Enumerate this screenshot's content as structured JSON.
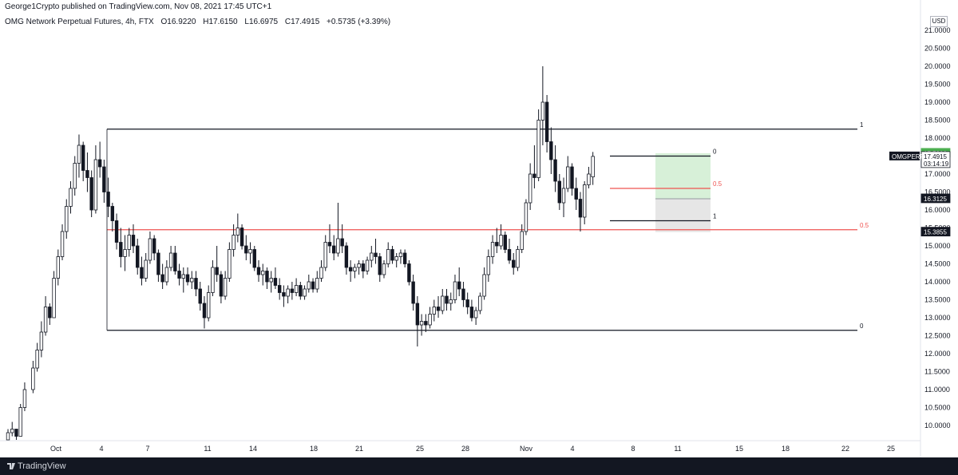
{
  "header": {
    "published": "George1Crypto published on TradingView.com, Nov 08, 2021 17:45 UTC+1"
  },
  "legend": {
    "symbol": "OMG Network Perpetual Futures, 4h, FTX",
    "open": "O16.9220",
    "high": "H17.6150",
    "low": "L16.6975",
    "close": "C17.4915",
    "change": "+0.5735 (+3.39%)"
  },
  "footer": {
    "brand": "TradingView"
  },
  "colors": {
    "up": "#131722",
    "down": "#131722",
    "fib_red": "#ef5350",
    "profit_zone": "#d7f0d8",
    "stop_zone": "#e6e6e6",
    "green_tag": "#4caf50"
  },
  "chart_data": {
    "type": "candlestick",
    "currency_label": "USD",
    "y_ticks": [
      "21.0000",
      "20.5000",
      "20.0000",
      "19.5000",
      "19.0000",
      "18.5000",
      "18.0000",
      "17.5000",
      "17.0000",
      "16.5000",
      "16.0000",
      "15.5000",
      "15.0000",
      "14.5000",
      "14.0000",
      "13.5000",
      "13.0000",
      "12.5000",
      "12.0000",
      "11.5000",
      "11.0000",
      "10.5000",
      "10.0000"
    ],
    "x_ticks": [
      "Oct",
      "4",
      "7",
      "11",
      "14",
      "18",
      "21",
      "25",
      "28",
      "Nov",
      "4",
      "8",
      "11",
      "15",
      "18",
      "22",
      "25"
    ],
    "price_tags": [
      {
        "label": "17.5800",
        "value": 17.58,
        "style": "green"
      },
      {
        "label": "17.4915",
        "value": 17.4915,
        "style": "current",
        "timer": "03:14:19"
      },
      {
        "label": "16.3125",
        "value": 16.3125,
        "style": "dark"
      },
      {
        "label": "15.3855",
        "value": 15.3855,
        "style": "dark"
      }
    ],
    "symbol_tag": "OMGPERP",
    "fib_big": [
      {
        "label": "1",
        "value": 18.25
      },
      {
        "label": "0.5",
        "value": 15.45
      },
      {
        "label": "0",
        "value": 12.65
      }
    ],
    "fib_small": [
      {
        "label": "0",
        "value": 17.5
      },
      {
        "label": "0.5",
        "value": 16.6
      },
      {
        "label": "1",
        "value": 15.7
      }
    ],
    "position": {
      "entry": 16.3125,
      "target": 17.58,
      "stop": 15.3855
    },
    "candles": [
      [
        1,
        9.6,
        9.9,
        9.6,
        9.8
      ],
      [
        1,
        9.8,
        10.1,
        9.7,
        9.9
      ],
      [
        1,
        9.9,
        9.9,
        9.6,
        9.7
      ],
      [
        2,
        9.7,
        10.6,
        9.7,
        10.5
      ],
      [
        2,
        10.5,
        11.2,
        10.4,
        11.0
      ],
      [
        3,
        11.0,
        11.8,
        10.9,
        11.6
      ],
      [
        3,
        11.6,
        12.3,
        11.5,
        12.1
      ],
      [
        3,
        12.1,
        12.9,
        11.9,
        12.6
      ],
      [
        4,
        12.6,
        13.6,
        12.5,
        13.3
      ],
      [
        4,
        13.3,
        13.4,
        12.8,
        13.0
      ],
      [
        4,
        13.0,
        14.3,
        13.0,
        14.1
      ],
      [
        5,
        14.1,
        14.9,
        13.9,
        14.7
      ],
      [
        5,
        14.7,
        15.6,
        14.6,
        15.4
      ],
      [
        5,
        15.4,
        16.3,
        15.2,
        16.1
      ],
      [
        6,
        16.1,
        16.8,
        15.9,
        16.6
      ],
      [
        6,
        16.6,
        17.5,
        16.4,
        17.3
      ],
      [
        6,
        17.3,
        18.1,
        16.9,
        17.8
      ],
      [
        7,
        17.8,
        17.9,
        16.8,
        17.1
      ],
      [
        7,
        17.1,
        17.6,
        16.5,
        16.9
      ],
      [
        7,
        16.9,
        17.1,
        15.8,
        16.0
      ],
      [
        8,
        16.0,
        17.8,
        15.9,
        17.4
      ],
      [
        8,
        17.4,
        17.9,
        16.9,
        17.2
      ],
      [
        8,
        17.2,
        17.4,
        16.2,
        16.5
      ],
      [
        9,
        16.5,
        16.9,
        15.8,
        16.1
      ],
      [
        9,
        16.1,
        16.2,
        15.4,
        15.7
      ],
      [
        9,
        15.7,
        15.9,
        14.9,
        15.1
      ],
      [
        10,
        15.1,
        15.5,
        14.4,
        14.7
      ],
      [
        10,
        14.7,
        15.3,
        14.3,
        14.9
      ],
      [
        10,
        14.9,
        15.5,
        14.7,
        15.3
      ],
      [
        11,
        15.3,
        15.6,
        14.8,
        15.0
      ],
      [
        11,
        15.0,
        15.2,
        14.2,
        14.4
      ],
      [
        11,
        14.4,
        14.7,
        13.9,
        14.1
      ],
      [
        12,
        14.1,
        14.8,
        14.0,
        14.6
      ],
      [
        12,
        14.6,
        15.4,
        14.5,
        15.2
      ],
      [
        12,
        15.2,
        15.3,
        14.6,
        14.8
      ],
      [
        13,
        14.8,
        14.9,
        14.0,
        14.2
      ],
      [
        13,
        14.2,
        14.5,
        13.8,
        14.0
      ],
      [
        13,
        14.0,
        14.6,
        13.9,
        14.4
      ],
      [
        14,
        14.4,
        15.0,
        14.3,
        14.8
      ],
      [
        14,
        14.8,
        15.0,
        14.2,
        14.3
      ],
      [
        14,
        14.3,
        14.5,
        13.9,
        14.1
      ],
      [
        15,
        14.1,
        14.4,
        13.7,
        14.2
      ],
      [
        15,
        14.2,
        14.4,
        13.9,
        14.0
      ],
      [
        15,
        14.0,
        14.3,
        13.8,
        14.1
      ],
      [
        16,
        14.1,
        14.3,
        13.6,
        13.8
      ],
      [
        16,
        13.8,
        14.0,
        13.2,
        13.4
      ],
      [
        16,
        13.4,
        13.6,
        12.7,
        13.0
      ],
      [
        17,
        13.0,
        13.9,
        12.9,
        13.7
      ],
      [
        17,
        13.7,
        14.6,
        13.6,
        14.4
      ],
      [
        17,
        14.4,
        15.0,
        14.0,
        14.2
      ],
      [
        18,
        14.2,
        14.3,
        13.4,
        13.6
      ],
      [
        18,
        13.6,
        14.3,
        13.5,
        14.1
      ],
      [
        18,
        14.1,
        15.1,
        14.0,
        14.9
      ],
      [
        19,
        14.9,
        15.6,
        14.7,
        15.3
      ],
      [
        19,
        15.3,
        15.9,
        15.1,
        15.5
      ],
      [
        19,
        15.5,
        15.6,
        14.9,
        15.0
      ],
      [
        20,
        15.0,
        15.3,
        14.6,
        14.8
      ],
      [
        20,
        14.8,
        15.1,
        14.5,
        14.9
      ],
      [
        20,
        14.9,
        15.0,
        14.3,
        14.4
      ],
      [
        21,
        14.4,
        14.6,
        14.0,
        14.2
      ],
      [
        21,
        14.2,
        14.5,
        13.9,
        14.3
      ],
      [
        21,
        14.3,
        14.4,
        13.8,
        14.0
      ],
      [
        22,
        14.0,
        14.3,
        13.7,
        14.1
      ],
      [
        22,
        14.1,
        14.4,
        13.8,
        13.9
      ],
      [
        22,
        13.9,
        14.1,
        13.5,
        13.7
      ],
      [
        23,
        13.7,
        13.9,
        13.3,
        13.6
      ],
      [
        23,
        13.6,
        13.9,
        13.4,
        13.8
      ],
      [
        23,
        13.8,
        14.0,
        13.5,
        13.7
      ],
      [
        24,
        13.7,
        14.1,
        13.6,
        13.9
      ],
      [
        24,
        13.9,
        14.0,
        13.5,
        13.6
      ],
      [
        24,
        13.6,
        13.9,
        13.5,
        13.8
      ],
      [
        25,
        13.8,
        14.2,
        13.7,
        14.0
      ],
      [
        25,
        14.0,
        14.1,
        13.7,
        13.8
      ],
      [
        25,
        13.8,
        14.3,
        13.7,
        14.1
      ],
      [
        26,
        14.1,
        14.6,
        14.0,
        14.4
      ],
      [
        26,
        14.4,
        15.3,
        14.3,
        15.1
      ],
      [
        26,
        15.1,
        15.6,
        14.8,
        15.0
      ],
      [
        27,
        15.0,
        15.3,
        14.6,
        14.8
      ],
      [
        27,
        14.8,
        16.2,
        14.7,
        15.2
      ],
      [
        27,
        15.2,
        15.6,
        14.8,
        15.0
      ],
      [
        28,
        15.0,
        15.1,
        14.2,
        14.4
      ],
      [
        28,
        14.4,
        14.6,
        14.0,
        14.3
      ],
      [
        28,
        14.3,
        14.5,
        14.1,
        14.4
      ],
      [
        29,
        14.4,
        14.6,
        14.2,
        14.5
      ],
      [
        29,
        14.5,
        14.6,
        14.1,
        14.3
      ],
      [
        29,
        14.3,
        14.7,
        14.2,
        14.6
      ],
      [
        30,
        14.6,
        15.0,
        14.4,
        14.8
      ],
      [
        30,
        14.8,
        15.2,
        14.5,
        14.7
      ],
      [
        30,
        14.7,
        14.8,
        14.0,
        14.2
      ],
      [
        31,
        14.2,
        14.6,
        14.1,
        14.5
      ],
      [
        31,
        14.5,
        15.1,
        14.4,
        14.9
      ],
      [
        31,
        14.9,
        15.0,
        14.5,
        14.6
      ],
      [
        32,
        14.6,
        14.8,
        14.4,
        14.7
      ],
      [
        32,
        14.7,
        14.9,
        14.5,
        14.8
      ],
      [
        32,
        14.8,
        14.9,
        14.4,
        14.5
      ],
      [
        33,
        14.5,
        14.6,
        13.9,
        14.0
      ],
      [
        33,
        14.0,
        14.2,
        13.2,
        13.4
      ],
      [
        33,
        13.4,
        13.6,
        12.2,
        12.8
      ],
      [
        34,
        12.8,
        13.1,
        12.5,
        12.9
      ],
      [
        34,
        12.9,
        13.1,
        12.6,
        12.8
      ],
      [
        34,
        12.8,
        13.3,
        12.7,
        13.1
      ],
      [
        35,
        13.1,
        13.5,
        12.9,
        13.3
      ],
      [
        35,
        13.3,
        13.6,
        13.0,
        13.2
      ],
      [
        35,
        13.2,
        13.8,
        13.1,
        13.6
      ],
      [
        36,
        13.6,
        13.8,
        13.2,
        13.4
      ],
      [
        36,
        13.4,
        13.7,
        13.2,
        13.5
      ],
      [
        36,
        13.5,
        14.2,
        13.4,
        14.0
      ],
      [
        37,
        14.0,
        14.4,
        13.6,
        13.8
      ],
      [
        37,
        13.8,
        14.0,
        13.3,
        13.5
      ],
      [
        37,
        13.5,
        13.7,
        13.1,
        13.3
      ],
      [
        38,
        13.3,
        13.5,
        12.9,
        13.0
      ],
      [
        38,
        13.0,
        13.3,
        12.8,
        13.2
      ],
      [
        38,
        13.2,
        13.7,
        13.1,
        13.6
      ],
      [
        39,
        13.6,
        14.4,
        13.5,
        14.2
      ],
      [
        39,
        14.2,
        14.9,
        14.0,
        14.7
      ],
      [
        39,
        14.7,
        15.3,
        14.5,
        15.1
      ],
      [
        40,
        15.1,
        15.5,
        14.8,
        15.0
      ],
      [
        40,
        15.0,
        15.6,
        14.9,
        15.3
      ],
      [
        40,
        15.3,
        15.4,
        14.8,
        14.9
      ],
      [
        41,
        14.9,
        15.2,
        14.5,
        14.6
      ],
      [
        41,
        14.6,
        14.8,
        14.2,
        14.4
      ],
      [
        41,
        14.4,
        15.0,
        14.3,
        14.9
      ],
      [
        42,
        14.9,
        15.6,
        14.8,
        15.4
      ],
      [
        42,
        15.4,
        16.3,
        15.3,
        16.2
      ],
      [
        42,
        16.2,
        17.3,
        16.0,
        17.0
      ],
      [
        43,
        17.0,
        17.8,
        16.6,
        16.9
      ],
      [
        43,
        16.9,
        18.8,
        16.8,
        18.5
      ],
      [
        43,
        18.5,
        20.0,
        17.8,
        19.0
      ],
      [
        44,
        19.0,
        19.2,
        17.6,
        17.9
      ],
      [
        44,
        17.9,
        18.3,
        17.0,
        17.4
      ],
      [
        44,
        17.4,
        17.8,
        16.5,
        16.8
      ],
      [
        45,
        16.8,
        17.0,
        16.0,
        16.2
      ],
      [
        45,
        16.2,
        16.9,
        15.8,
        16.6
      ],
      [
        45,
        16.6,
        17.5,
        16.5,
        17.2
      ],
      [
        46,
        17.2,
        17.3,
        16.4,
        16.6
      ],
      [
        46,
        16.6,
        16.9,
        16.0,
        16.3
      ],
      [
        46,
        16.3,
        16.5,
        15.4,
        15.8
      ],
      [
        47,
        15.8,
        16.8,
        15.6,
        16.7
      ],
      [
        47,
        16.7,
        17.2,
        16.6,
        17.0
      ],
      [
        47,
        16.92,
        17.615,
        16.6975,
        17.4915
      ]
    ]
  }
}
